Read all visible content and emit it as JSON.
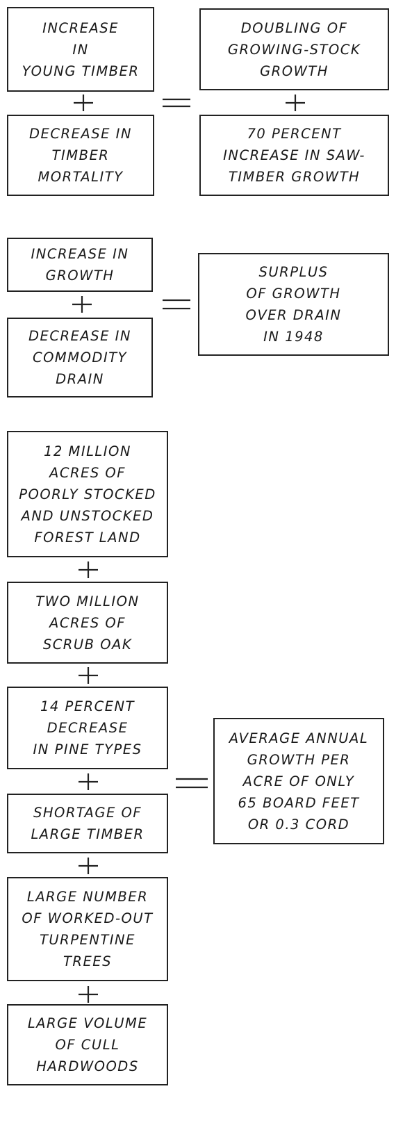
{
  "boxes": [
    {
      "lines": [
        "INCREASE",
        "IN",
        "YOUNG TIMBER"
      ]
    },
    {
      "lines": [
        "DECREASE IN",
        "TIMBER",
        "MORTALITY"
      ]
    },
    {
      "lines": [
        "DOUBLING OF",
        "GROWING-STOCK",
        "GROWTH"
      ]
    },
    {
      "lines": [
        "70 PERCENT",
        "INCREASE IN SAW-",
        "TIMBER GROWTH"
      ]
    },
    {
      "lines": [
        "INCREASE IN",
        "GROWTH"
      ]
    },
    {
      "lines": [
        "DECREASE IN",
        "COMMODITY",
        "DRAIN"
      ]
    },
    {
      "lines": [
        "SURPLUS",
        "OF GROWTH",
        "OVER DRAIN",
        "IN 1948"
      ]
    },
    {
      "lines": [
        "12 MILLION",
        "ACRES OF",
        "POORLY STOCKED",
        "AND UNSTOCKED",
        "FOREST LAND"
      ]
    },
    {
      "lines": [
        "TWO MILLION",
        "ACRES OF",
        "SCRUB OAK"
      ]
    },
    {
      "lines": [
        "14 PERCENT",
        "DECREASE",
        "IN PINE TYPES"
      ]
    },
    {
      "lines": [
        "SHORTAGE OF",
        "LARGE TIMBER"
      ]
    },
    {
      "lines": [
        "LARGE NUMBER",
        "OF WORKED-OUT",
        "TURPENTINE",
        "TREES"
      ]
    },
    {
      "lines": [
        "LARGE VOLUME",
        "OF CULL",
        "HARDWOODS"
      ]
    },
    {
      "lines": [
        "AVERAGE ANNUAL",
        "GROWTH PER",
        "ACRE OF ONLY",
        "65 BOARD FEET",
        "OR 0.3 CORD"
      ]
    }
  ]
}
